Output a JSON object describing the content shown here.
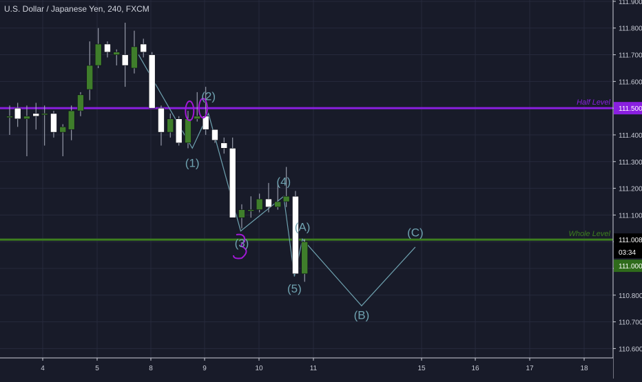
{
  "header": {
    "symbol_title": "U.S. Dollar / Japanese Yen, 240, FXCM"
  },
  "colors": {
    "background": "#181b29",
    "grid": "#262a3c",
    "bull_candle": "#ffffff",
    "bear_candle": "#3f7e2b",
    "wick": "#aeb3c2",
    "wave_line": "#6fa2b0",
    "half_level": "#8a1fe0",
    "whole_level": "#3d7f1f",
    "circle_marks": "#a318d8",
    "axis_text": "#c9ccd6",
    "price_badge_bg": "#000000",
    "price_badge_green": "#2f6b1b"
  },
  "chart_data": {
    "type": "candlestick",
    "title": "U.S. Dollar / Japanese Yen, 240, FXCM",
    "xlabel": "",
    "ylabel": "",
    "x_axis": {
      "min": 3.3,
      "max": 19.0,
      "ticks": [
        4,
        5,
        8,
        9,
        10,
        11,
        15,
        16,
        17,
        18
      ],
      "tick_labels": [
        "4",
        "5",
        "8",
        "9",
        "10",
        "11",
        "15",
        "16",
        "17",
        "18"
      ]
    },
    "y_axis": {
      "min": 110.565,
      "max": 111.905,
      "ticks": [
        110.6,
        110.7,
        110.8,
        110.9,
        111.0,
        111.1,
        111.2,
        111.3,
        111.4,
        111.5,
        111.6,
        111.7,
        111.8,
        111.9
      ],
      "tick_labels": [
        "110.600",
        "110.700",
        "110.800",
        "110.900",
        "111.000",
        "111.100",
        "111.200",
        "111.300",
        "111.400",
        "111.500",
        "111.600",
        "111.700",
        "111.800",
        "111.900"
      ],
      "position": "right"
    },
    "grid": true,
    "candles": [
      {
        "t": 3.3,
        "o": 111.47,
        "h": 111.51,
        "l": 111.4,
        "c": 111.47
      },
      {
        "t": 3.45,
        "o": 111.5,
        "h": 111.52,
        "l": 111.43,
        "c": 111.46
      },
      {
        "t": 3.62,
        "o": 111.46,
        "h": 111.51,
        "l": 111.32,
        "c": 111.47
      },
      {
        "t": 3.79,
        "o": 111.48,
        "h": 111.52,
        "l": 111.42,
        "c": 111.47
      },
      {
        "t": 3.95,
        "o": 111.48,
        "h": 111.51,
        "l": 111.36,
        "c": 111.48
      },
      {
        "t": 4.12,
        "o": 111.48,
        "h": 111.49,
        "l": 111.39,
        "c": 111.41
      },
      {
        "t": 4.29,
        "o": 111.41,
        "h": 111.44,
        "l": 111.32,
        "c": 111.43
      },
      {
        "t": 4.45,
        "o": 111.42,
        "h": 111.51,
        "l": 111.38,
        "c": 111.49
      },
      {
        "t": 4.62,
        "o": 111.49,
        "h": 111.56,
        "l": 111.47,
        "c": 111.55
      },
      {
        "t": 4.79,
        "o": 111.57,
        "h": 111.75,
        "l": 111.53,
        "c": 111.66
      },
      {
        "t": 4.95,
        "o": 111.66,
        "h": 111.8,
        "l": 111.65,
        "c": 111.74
      },
      {
        "t": 5.12,
        "o": 111.74,
        "h": 111.75,
        "l": 111.69,
        "c": 111.71
      },
      {
        "t": 5.29,
        "o": 111.7,
        "h": 111.72,
        "l": 111.66,
        "c": 111.71
      },
      {
        "t": 5.45,
        "o": 111.7,
        "h": 111.82,
        "l": 111.58,
        "c": 111.66
      },
      {
        "t": 5.62,
        "o": 111.65,
        "h": 111.79,
        "l": 111.63,
        "c": 111.73
      },
      {
        "t": 5.79,
        "o": 111.74,
        "h": 111.76,
        "l": 111.69,
        "c": 111.71
      },
      {
        "t": 5.95,
        "o": 111.7,
        "h": 111.71,
        "l": 111.5,
        "c": 111.5
      },
      {
        "t": 6.12,
        "o": 111.5,
        "h": 111.51,
        "l": 111.36,
        "c": 111.41
      },
      {
        "t": 6.29,
        "o": 111.41,
        "h": 111.48,
        "l": 111.39,
        "c": 111.46
      },
      {
        "t": 6.45,
        "o": 111.46,
        "h": 111.47,
        "l": 111.36,
        "c": 111.37
      },
      {
        "t": 6.62,
        "o": 111.37,
        "h": 111.49,
        "l": 111.35,
        "c": 111.46
      },
      {
        "t": 6.79,
        "o": 111.46,
        "h": 111.56,
        "l": 111.45,
        "c": 111.47
      },
      {
        "t": 6.95,
        "o": 111.47,
        "h": 111.58,
        "l": 111.4,
        "c": 111.42
      },
      {
        "t": 7.12,
        "o": 111.42,
        "h": 111.42,
        "l": 111.37,
        "c": 111.38
      },
      {
        "t": 7.29,
        "o": 111.37,
        "h": 111.39,
        "l": 111.33,
        "c": 111.35
      },
      {
        "t": 7.45,
        "o": 111.35,
        "h": 111.39,
        "l": 111.09,
        "c": 111.09
      },
      {
        "t": 7.62,
        "o": 111.09,
        "h": 111.14,
        "l": 111.05,
        "c": 111.12
      },
      {
        "t": 7.79,
        "o": 111.12,
        "h": 111.17,
        "l": 111.09,
        "c": 111.12
      },
      {
        "t": 7.95,
        "o": 111.12,
        "h": 111.18,
        "l": 111.11,
        "c": 111.16
      },
      {
        "t": 8.12,
        "o": 111.16,
        "h": 111.22,
        "l": 111.11,
        "c": 111.13
      },
      {
        "t": 8.29,
        "o": 111.13,
        "h": 111.22,
        "l": 111.12,
        "c": 111.15
      },
      {
        "t": 8.45,
        "o": 111.15,
        "h": 111.28,
        "l": 111.13,
        "c": 111.17
      },
      {
        "t": 8.62,
        "o": 111.17,
        "h": 111.19,
        "l": 110.88,
        "c": 110.88
      },
      {
        "t": 8.79,
        "o": 110.88,
        "h": 111.01,
        "l": 110.85,
        "c": 111.0
      }
    ],
    "wave_path": [
      {
        "t": 5.7,
        "p": 111.7
      },
      {
        "t": 6.7,
        "p": 111.35
      },
      {
        "t": 7.0,
        "p": 111.48
      },
      {
        "t": 7.6,
        "p": 111.04
      },
      {
        "t": 8.4,
        "p": 111.17
      },
      {
        "t": 8.6,
        "p": 110.87
      },
      {
        "t": 8.75,
        "p": 111.01
      },
      {
        "t": 9.85,
        "p": 110.76
      },
      {
        "t": 10.85,
        "p": 110.98
      }
    ],
    "wave_labels": [
      {
        "t": 6.7,
        "p": 111.28,
        "text": "(1)"
      },
      {
        "t": 7.0,
        "p": 111.53,
        "text": "(2)"
      },
      {
        "t": 7.62,
        "p": 110.98,
        "text": "(3)"
      },
      {
        "t": 8.4,
        "p": 111.21,
        "text": "(4)"
      },
      {
        "t": 8.6,
        "p": 110.81,
        "text": "(5)"
      },
      {
        "t": 8.75,
        "p": 111.04,
        "text": "(A)"
      },
      {
        "t": 9.85,
        "p": 110.71,
        "text": "(B)"
      },
      {
        "t": 10.85,
        "p": 111.02,
        "text": "(C)"
      }
    ],
    "annotations": {
      "half_level": {
        "price": 111.5,
        "label": "Half Level"
      },
      "whole_level": {
        "price": 111.008,
        "label": "Whole  Level"
      },
      "circle_marks": [
        {
          "t": 6.65,
          "p": 111.49
        },
        {
          "t": 6.9,
          "p": 111.5
        },
        {
          "t": 7.62,
          "p": 110.98
        }
      ]
    },
    "price_badges": [
      {
        "price": 111.5,
        "label": "111.500",
        "kind": "half"
      },
      {
        "price": 111.008,
        "label": "111.008",
        "kind": "current"
      },
      {
        "price": 110.968,
        "label": "03:34",
        "kind": "countdown"
      },
      {
        "price": 111.0,
        "label": "111.000",
        "kind": "whole"
      }
    ]
  }
}
